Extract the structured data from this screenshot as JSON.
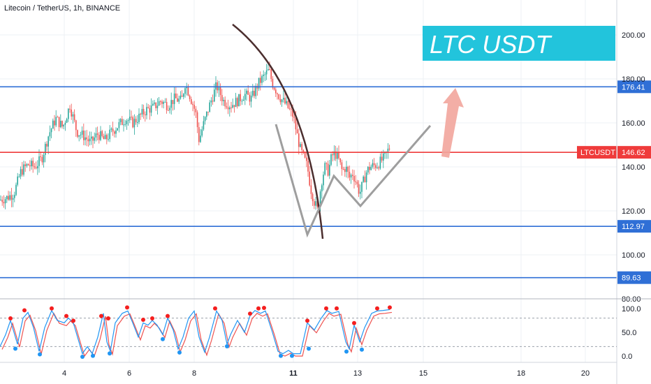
{
  "header": {
    "title": "Litecoin / TetherUS, 1h, BINANCE",
    "banner": "LTC USDT"
  },
  "colors": {
    "background": "#ffffff",
    "grid": "#eef0f4",
    "blue_level": "#2f6fd6",
    "red_level": "#ef3b3b",
    "up_candle": "#26a69a",
    "down_candle": "#ef5350",
    "banner_bg": "#22c4dc",
    "arrow": "#f2a59c",
    "curve": "#4b2e2e",
    "pattern": "#9e9e9e",
    "stoch_k": "#2196f3",
    "stoch_d": "#ef5350",
    "dot_top": "#f41f1f",
    "dot_bottom": "#2196f3"
  },
  "chart_data": {
    "type": "candlestick",
    "symbol_tag": "LTCUSDT",
    "current_price": 146.62,
    "price_axis": {
      "ticks": [
        80,
        100,
        120,
        140,
        160,
        180,
        200
      ],
      "tick_labels": [
        "80.00",
        "100.00",
        "120.00",
        "140.00",
        "160.00",
        "180.00",
        "200.00"
      ],
      "range": [
        78,
        215
      ]
    },
    "time_axis": {
      "ticks": [
        "4",
        "6",
        "8",
        "11",
        "13",
        "15",
        "18",
        "20"
      ]
    },
    "levels": [
      {
        "price": 176.41,
        "label": "176.41",
        "color": "blue"
      },
      {
        "price": 146.62,
        "label": "146.62",
        "color": "red"
      },
      {
        "price": 112.97,
        "label": "112.97",
        "color": "blue"
      },
      {
        "price": 89.63,
        "label": "89.63",
        "color": "blue"
      }
    ],
    "close_path": [
      [
        0,
        125
      ],
      [
        10,
        126
      ],
      [
        20,
        128
      ],
      [
        30,
        138
      ],
      [
        40,
        141
      ],
      [
        50,
        140
      ],
      [
        60,
        144
      ],
      [
        70,
        155
      ],
      [
        80,
        162
      ],
      [
        90,
        158
      ],
      [
        100,
        168
      ],
      [
        110,
        156
      ],
      [
        120,
        154
      ],
      [
        130,
        151
      ],
      [
        140,
        155
      ],
      [
        150,
        152
      ],
      [
        160,
        156
      ],
      [
        170,
        159
      ],
      [
        180,
        162
      ],
      [
        190,
        160
      ],
      [
        200,
        163
      ],
      [
        210,
        166
      ],
      [
        220,
        167
      ],
      [
        230,
        170
      ],
      [
        240,
        168
      ],
      [
        250,
        171
      ],
      [
        260,
        170
      ],
      [
        265,
        178
      ],
      [
        270,
        174
      ],
      [
        280,
        165
      ],
      [
        285,
        152
      ],
      [
        290,
        158
      ],
      [
        300,
        168
      ],
      [
        310,
        177
      ],
      [
        320,
        170
      ],
      [
        330,
        168
      ],
      [
        340,
        170
      ],
      [
        350,
        173
      ],
      [
        360,
        171
      ],
      [
        370,
        178
      ],
      [
        380,
        182
      ],
      [
        385,
        184
      ],
      [
        390,
        178
      ],
      [
        400,
        172
      ],
      [
        410,
        168
      ],
      [
        420,
        163
      ],
      [
        425,
        155
      ],
      [
        430,
        148
      ],
      [
        440,
        140
      ],
      [
        445,
        130
      ],
      [
        450,
        124
      ],
      [
        455,
        120
      ],
      [
        460,
        133
      ],
      [
        465,
        140
      ],
      [
        470,
        138
      ],
      [
        475,
        145
      ],
      [
        480,
        146
      ],
      [
        485,
        143
      ],
      [
        490,
        138
      ],
      [
        495,
        140
      ],
      [
        500,
        135
      ],
      [
        505,
        137
      ],
      [
        510,
        133
      ],
      [
        515,
        128
      ],
      [
        520,
        133
      ],
      [
        525,
        138
      ],
      [
        530,
        140
      ],
      [
        540,
        141
      ],
      [
        550,
        144
      ],
      [
        558,
        149
      ]
    ],
    "stochastic": {
      "ticks": [
        0,
        50,
        100
      ],
      "tick_labels": [
        "0.0",
        "50.0",
        "100.0"
      ],
      "overbought": 80,
      "oversold": 20,
      "k_points": [
        [
          0,
          20
        ],
        [
          8,
          45
        ],
        [
          15,
          75
        ],
        [
          20,
          50
        ],
        [
          25,
          25
        ],
        [
          33,
          80
        ],
        [
          40,
          92
        ],
        [
          48,
          60
        ],
        [
          56,
          10
        ],
        [
          64,
          60
        ],
        [
          74,
          96
        ],
        [
          82,
          75
        ],
        [
          92,
          70
        ],
        [
          98,
          80
        ],
        [
          105,
          70
        ],
        [
          112,
          35
        ],
        [
          118,
          5
        ],
        [
          125,
          20
        ],
        [
          132,
          5
        ],
        [
          140,
          40
        ],
        [
          148,
          90
        ],
        [
          153,
          30
        ],
        [
          158,
          10
        ],
        [
          165,
          70
        ],
        [
          175,
          90
        ],
        [
          183,
          95
        ],
        [
          190,
          70
        ],
        [
          198,
          40
        ],
        [
          205,
          70
        ],
        [
          212,
          65
        ],
        [
          218,
          75
        ],
        [
          225,
          65
        ],
        [
          233,
          45
        ],
        [
          240,
          80
        ],
        [
          248,
          55
        ],
        [
          255,
          15
        ],
        [
          262,
          40
        ],
        [
          270,
          80
        ],
        [
          278,
          95
        ],
        [
          285,
          40
        ],
        [
          293,
          8
        ],
        [
          300,
          40
        ],
        [
          310,
          95
        ],
        [
          318,
          75
        ],
        [
          325,
          25
        ],
        [
          330,
          45
        ],
        [
          340,
          75
        ],
        [
          350,
          50
        ],
        [
          358,
          85
        ],
        [
          365,
          96
        ],
        [
          373,
          90
        ],
        [
          380,
          95
        ],
        [
          390,
          50
        ],
        [
          398,
          10
        ],
        [
          405,
          5
        ],
        [
          413,
          12
        ],
        [
          420,
          5
        ],
        [
          430,
          5
        ],
        [
          440,
          70
        ],
        [
          450,
          55
        ],
        [
          460,
          80
        ],
        [
          468,
          96
        ],
        [
          475,
          90
        ],
        [
          485,
          94
        ],
        [
          495,
          30
        ],
        [
          500,
          15
        ],
        [
          507,
          65
        ],
        [
          515,
          30
        ],
        [
          522,
          60
        ],
        [
          532,
          90
        ],
        [
          540,
          95
        ],
        [
          548,
          96
        ],
        [
          558,
          98
        ]
      ],
      "top_dots": [
        [
          15,
          75
        ],
        [
          35,
          92
        ],
        [
          74,
          96
        ],
        [
          95,
          80
        ],
        [
          105,
          70
        ],
        [
          145,
          80
        ],
        [
          155,
          75
        ],
        [
          182,
          98
        ],
        [
          205,
          72
        ],
        [
          218,
          75
        ],
        [
          240,
          80
        ],
        [
          308,
          96
        ],
        [
          358,
          85
        ],
        [
          370,
          96
        ],
        [
          378,
          97
        ],
        [
          440,
          70
        ],
        [
          467,
          96
        ],
        [
          482,
          96
        ],
        [
          507,
          65
        ],
        [
          540,
          96
        ],
        [
          558,
          98
        ]
      ],
      "bottom_dots": [
        [
          22,
          20
        ],
        [
          57,
          8
        ],
        [
          118,
          3
        ],
        [
          133,
          5
        ],
        [
          157,
          10
        ],
        [
          233,
          40
        ],
        [
          257,
          12
        ],
        [
          325,
          25
        ],
        [
          402,
          5
        ],
        [
          418,
          5
        ],
        [
          442,
          20
        ],
        [
          496,
          14
        ],
        [
          518,
          18
        ]
      ]
    }
  }
}
